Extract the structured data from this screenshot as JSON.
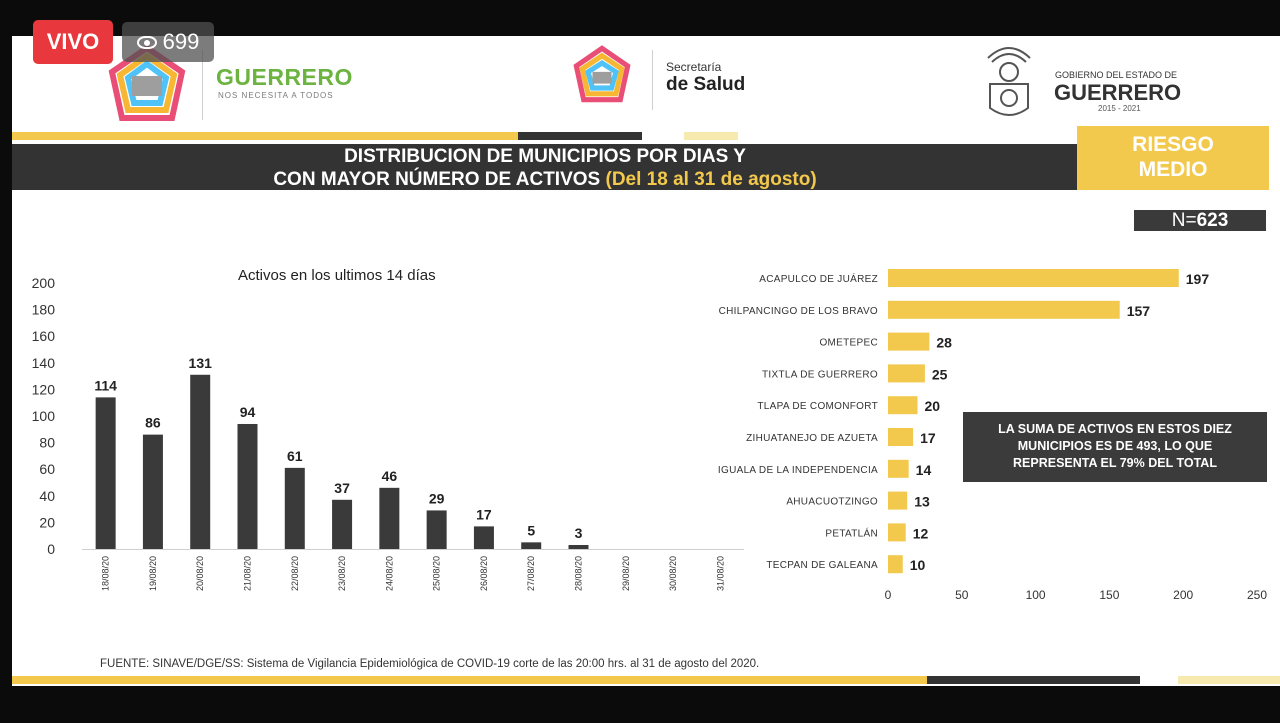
{
  "overlay": {
    "live_label": "VIVO",
    "viewer_count": "699"
  },
  "header": {
    "logo_left_title": "GUERRERO",
    "logo_left_subtitle": "NOS NECESITA A TODOS",
    "logo_center_line1": "Secretaría",
    "logo_center_line2": "de Salud",
    "logo_right_line1": "GOBIERNO DEL ESTADO DE",
    "logo_right_line2": "GUERRERO",
    "logo_right_line3": "2015 - 2021"
  },
  "slide": {
    "title_line1": "DISTRIBUCION DE MUNICIPIOS POR DIAS Y",
    "title_line2": "CON MAYOR NÚMERO DE ACTIVOS",
    "title_highlight": "(Del 18 al 31 de agosto)",
    "risk_line1": "RIESGO",
    "risk_line2": "MEDIO",
    "n_prefix": "N=",
    "n_value": "623",
    "note_line1": "LA SUMA DE ACTIVOS EN ESTOS DIEZ",
    "note_line2": "MUNICIPIOS ES DE 493, LO QUE",
    "note_line3": "REPRESENTA EL 79% DEL TOTAL",
    "source": "FUENTE: SINAVE/DGE/SS: Sistema de Vigilancia Epidemiológica de COVID-19 corte de las 20:00 hrs. al 31 de agosto del 2020."
  },
  "colors": {
    "bar_dark": "#3a3a3a",
    "bar_yellow": "#f2c94c",
    "banner": "#333333",
    "accent_green": "#6cb33f"
  },
  "chart_data": [
    {
      "type": "bar",
      "title": "Activos en los ultimos 14 días",
      "categories": [
        "18/08/20",
        "19/08/20",
        "20/08/20",
        "21/08/20",
        "22/08/20",
        "23/08/20",
        "24/08/20",
        "25/08/20",
        "26/08/20",
        "27/08/20",
        "28/08/20",
        "29/08/20",
        "30/08/20",
        "31/08/20"
      ],
      "values": [
        114,
        86,
        131,
        94,
        61,
        37,
        46,
        29,
        17,
        5,
        3,
        null,
        null,
        null
      ],
      "data_labels": [
        "114",
        "86",
        "131",
        "94",
        "61",
        "37",
        "46",
        "29",
        "17",
        "5",
        "3",
        "",
        "",
        ""
      ],
      "ylim": [
        0,
        200
      ],
      "yticks": [
        0,
        20,
        40,
        60,
        80,
        100,
        120,
        140,
        160,
        180,
        200
      ],
      "grid": false,
      "color": "#3a3a3a"
    },
    {
      "type": "bar",
      "orientation": "horizontal",
      "categories": [
        "ACAPULCO DE JUÁREZ",
        "CHILPANCINGO DE LOS BRAVO",
        "OMETEPEC",
        "TIXTLA DE GUERRERO",
        "TLAPA DE COMONFORT",
        "ZIHUATANEJO DE AZUETA",
        "IGUALA DE LA INDEPENDENCIA",
        "AHUACUOTZINGO",
        "PETATLÁN",
        "TECPAN DE GALEANA"
      ],
      "values": [
        197,
        157,
        28,
        25,
        20,
        17,
        14,
        13,
        12,
        10
      ],
      "xlim": [
        0,
        250
      ],
      "xticks": [
        0,
        50,
        100,
        150,
        200,
        250
      ],
      "grid": false,
      "color": "#f2c94c"
    }
  ]
}
